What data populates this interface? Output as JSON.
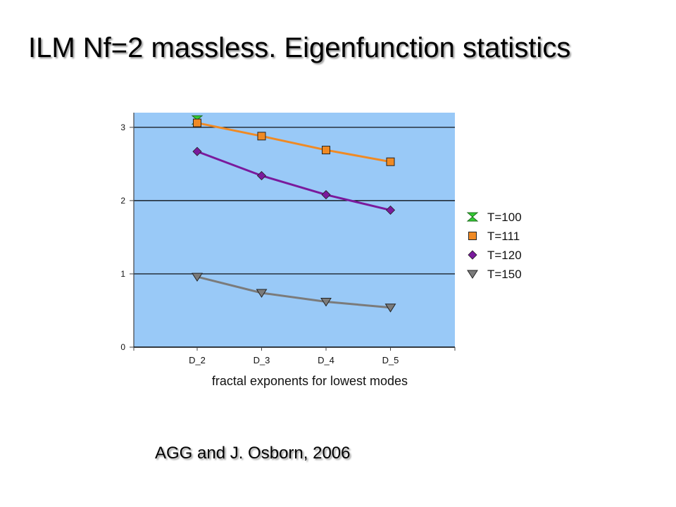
{
  "title": "ILM Nf=2 massless. Eigenfunction statistics",
  "caption": "AGG and J. Osborn, 2006",
  "chart_data": {
    "type": "line",
    "categories": [
      "D_2",
      "D_3",
      "D_4",
      "D_5"
    ],
    "xlabel": "fractal exponents for lowest modes",
    "ylabel": "",
    "ylim": [
      0,
      3.2
    ],
    "yticks": [
      0,
      1,
      2,
      3
    ],
    "grid": true,
    "legend_position": "right",
    "plot_background": "#99c9f7",
    "series": [
      {
        "name": "T=100",
        "color": "#33cc33",
        "marker": "hourglass",
        "values": [
          3.1,
          null,
          null,
          null
        ]
      },
      {
        "name": "T=111",
        "color": "#f08a24",
        "marker": "square",
        "values": [
          3.06,
          2.88,
          2.69,
          2.53
        ]
      },
      {
        "name": "T=120",
        "color": "#7a1a9c",
        "marker": "diamond",
        "values": [
          2.67,
          2.34,
          2.08,
          1.87
        ]
      },
      {
        "name": "T=150",
        "color": "#7b7b7b",
        "marker": "triangle-down",
        "values": [
          0.96,
          0.74,
          0.62,
          0.54
        ]
      }
    ]
  }
}
